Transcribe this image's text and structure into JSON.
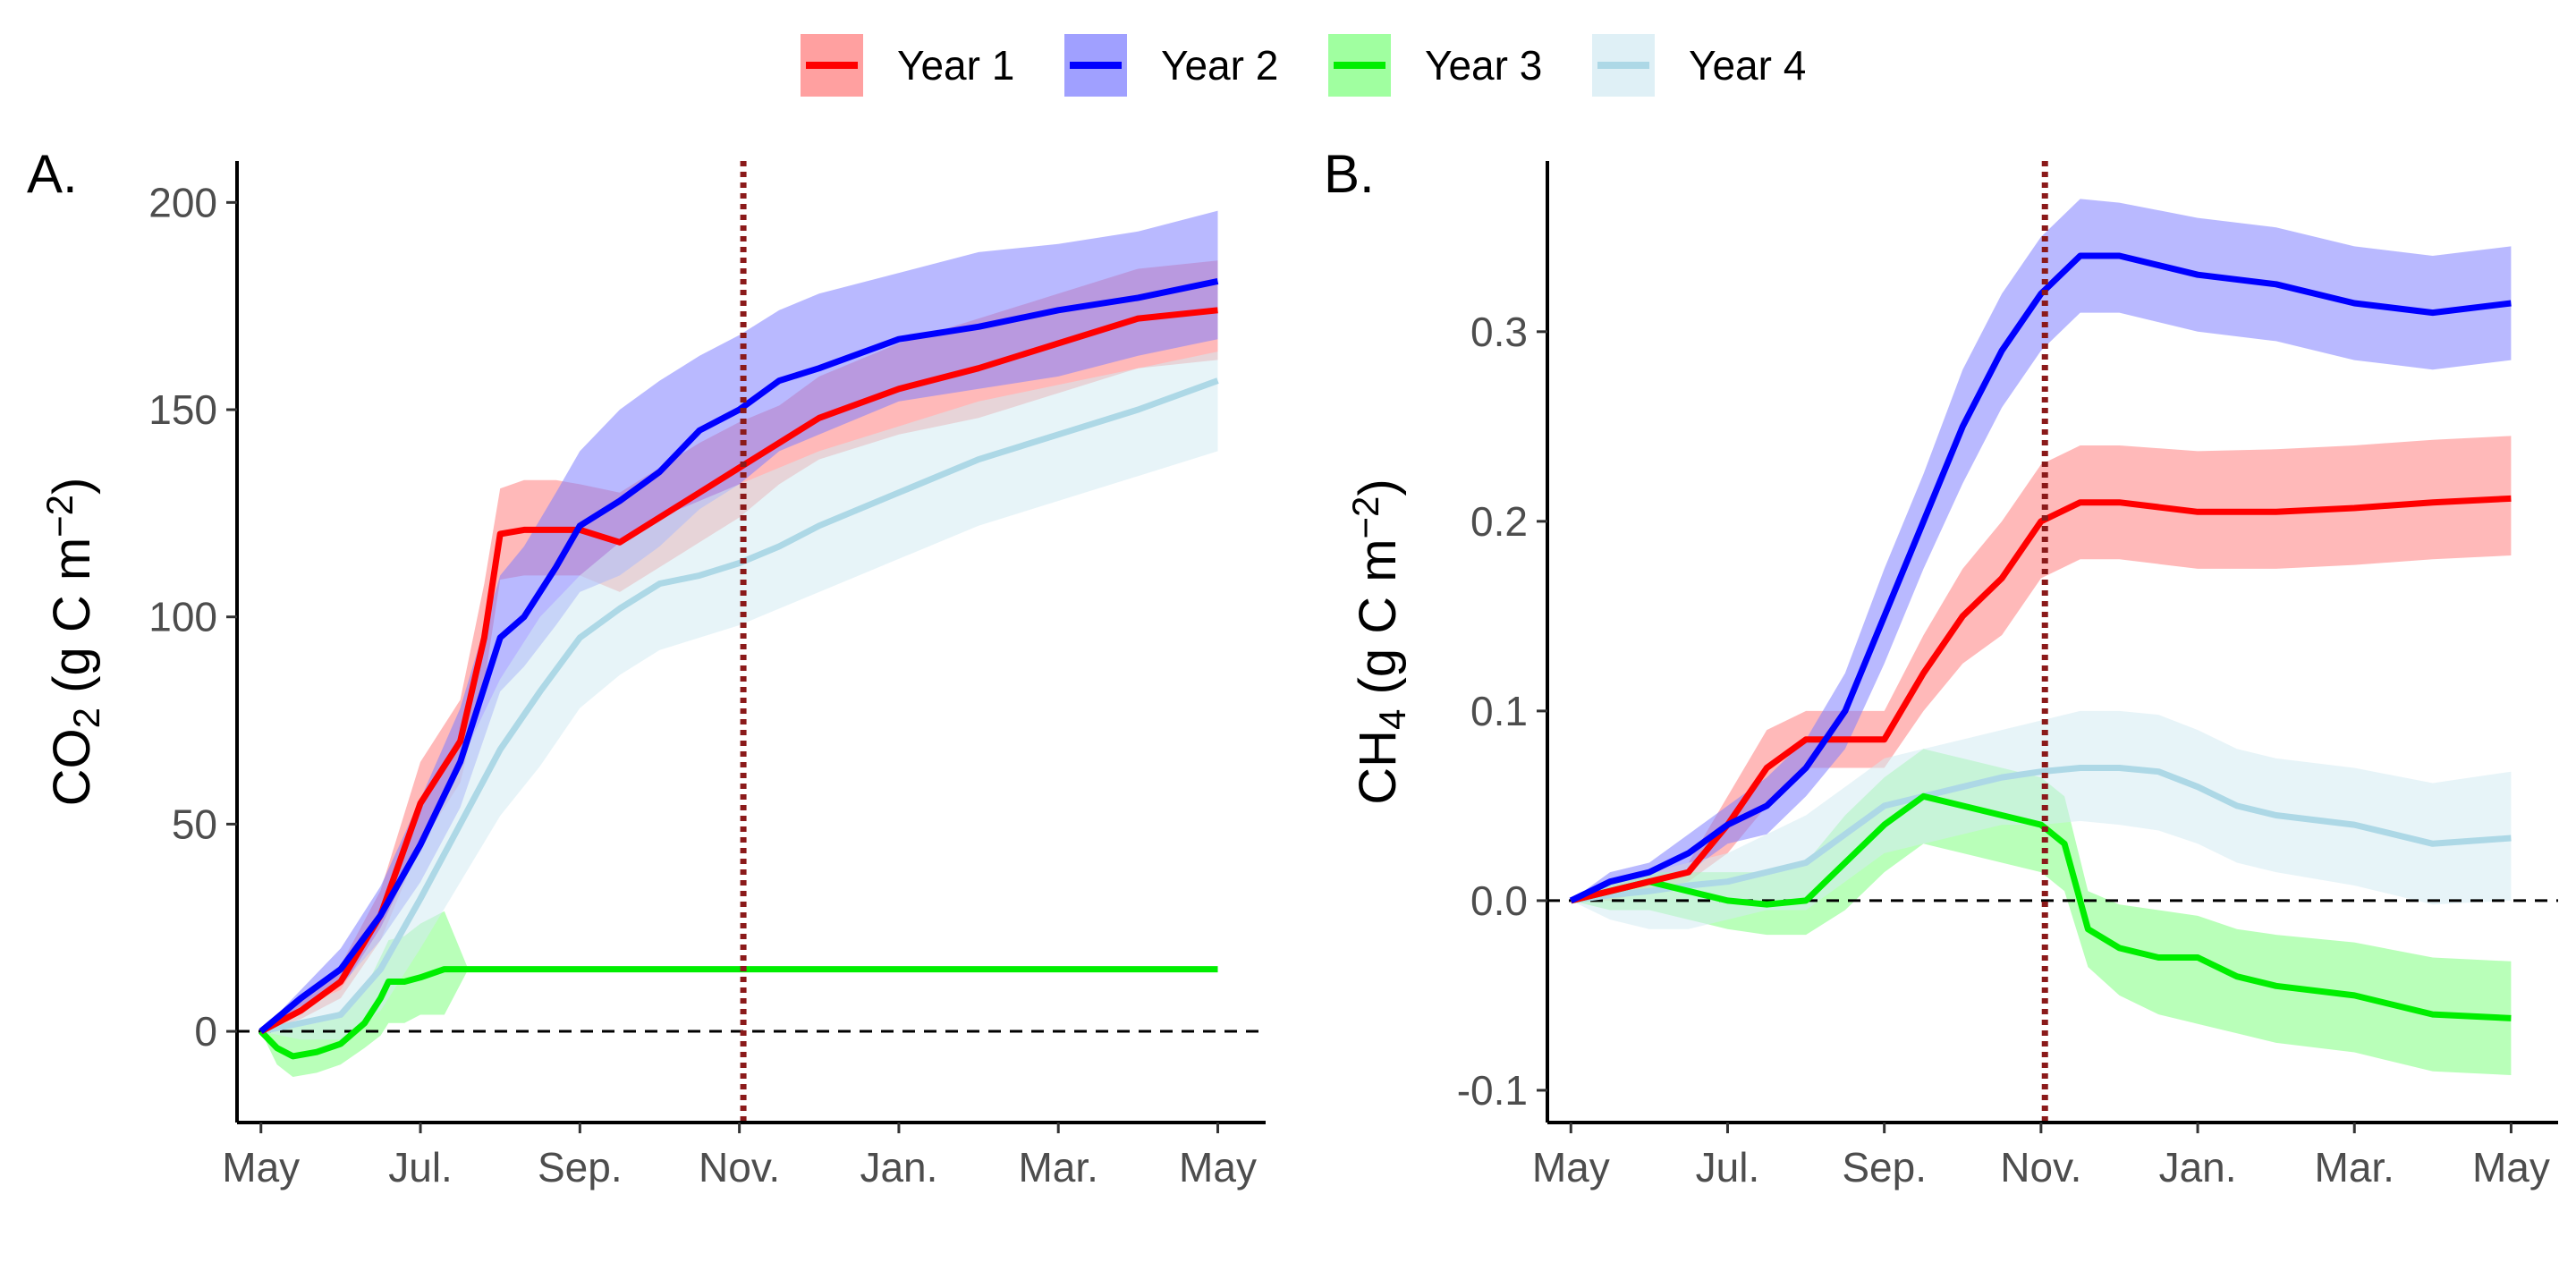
{
  "legend": {
    "entries": [
      {
        "label": "Year 1",
        "color": "#ff0000",
        "band_color": "#ff8080"
      },
      {
        "label": "Year 2",
        "color": "#0000ff",
        "band_color": "#8080ff"
      },
      {
        "label": "Year 3",
        "color": "#00ee00",
        "band_color": "#80ff80"
      },
      {
        "label": "Year 4",
        "color": "#add8e6",
        "band_color": "#d4ebf3"
      }
    ]
  },
  "reference_line_label": "",
  "chart_data": [
    {
      "type": "line",
      "panel_tag": "A.",
      "ylabel": {
        "main": "CO",
        "sub": "2",
        "unit_pre": " (g C m",
        "sup": "−2",
        "unit_post": ")"
      },
      "xlabel": "",
      "x_ticks": [
        "May",
        "Jul.",
        "Sep.",
        "Nov.",
        "Jan.",
        "Mar.",
        "May"
      ],
      "y_ticks": [
        "0",
        "50",
        "100",
        "150",
        "200"
      ],
      "y_tick_values": [
        0,
        50,
        100,
        150,
        200
      ],
      "ylim": [
        -22,
        210
      ],
      "xlim_months": [
        -0.3,
        12.6
      ],
      "zero_line": "dashed",
      "vertical_line_month": 6.05,
      "vertical_line_style": "dotted dark red",
      "grid": false,
      "series": [
        {
          "name": "Year 1",
          "x": [
            0,
            0.5,
            1,
            1.5,
            2,
            2.5,
            2.8,
            3,
            3.3,
            3.7,
            4,
            4.5,
            5,
            5.5,
            6,
            6.5,
            7,
            8,
            9,
            10,
            11,
            12
          ],
          "y": [
            0,
            5,
            12,
            28,
            55,
            70,
            95,
            120,
            121,
            121,
            121,
            118,
            124,
            130,
            136,
            142,
            148,
            155,
            160,
            166,
            172,
            174
          ],
          "upper": [
            0,
            7,
            16,
            34,
            65,
            80,
            108,
            131,
            133,
            133,
            132,
            130,
            136,
            142,
            147,
            151,
            158,
            166,
            172,
            178,
            184,
            186
          ],
          "lower": [
            0,
            3,
            8,
            22,
            45,
            60,
            84,
            109,
            110,
            110,
            110,
            106,
            112,
            118,
            124,
            132,
            138,
            144,
            148,
            154,
            160,
            162
          ]
        },
        {
          "name": "Year 2",
          "x": [
            0,
            0.5,
            1,
            1.5,
            2,
            2.5,
            3,
            3.3,
            3.7,
            4,
            4.5,
            5,
            5.5,
            6,
            6.5,
            7,
            8,
            9,
            10,
            11,
            12
          ],
          "y": [
            0,
            8,
            15,
            28,
            45,
            65,
            95,
            100,
            112,
            122,
            128,
            135,
            145,
            150,
            157,
            160,
            167,
            170,
            174,
            177,
            181
          ],
          "upper": [
            0,
            10,
            20,
            35,
            56,
            78,
            110,
            117,
            130,
            140,
            150,
            157,
            163,
            168,
            174,
            178,
            183,
            188,
            190,
            193,
            198
          ],
          "lower": [
            0,
            6,
            11,
            22,
            36,
            54,
            82,
            88,
            98,
            106,
            110,
            117,
            126,
            132,
            140,
            144,
            152,
            155,
            158,
            163,
            167
          ]
        },
        {
          "name": "Year 3",
          "x": [
            0,
            0.2,
            0.4,
            0.7,
            1,
            1.3,
            1.5,
            1.6,
            1.8,
            2,
            2.3,
            2.6,
            3,
            5,
            8,
            12
          ],
          "y": [
            0,
            -4,
            -6,
            -5,
            -3,
            2,
            8,
            12,
            12,
            13,
            15,
            15,
            15,
            15,
            15,
            15
          ],
          "upper": [
            0,
            2,
            1,
            2,
            5,
            10,
            18,
            22,
            23,
            26,
            29,
            15,
            15,
            15,
            15,
            15
          ],
          "lower": [
            0,
            -8,
            -11,
            -10,
            -8,
            -4,
            -1,
            2,
            2,
            4,
            4,
            15,
            15,
            15,
            15,
            15
          ]
        },
        {
          "name": "Year 4",
          "x": [
            0,
            0.5,
            1,
            1.5,
            2,
            2.5,
            3,
            3.5,
            4,
            4.5,
            5,
            5.5,
            6,
            6.5,
            7,
            8,
            9,
            10,
            11,
            12
          ],
          "y": [
            0,
            2,
            4,
            15,
            32,
            50,
            68,
            82,
            95,
            102,
            108,
            110,
            113,
            117,
            122,
            130,
            138,
            144,
            150,
            157
          ],
          "upper": [
            0,
            6,
            10,
            25,
            45,
            65,
            85,
            100,
            110,
            118,
            124,
            128,
            132,
            136,
            140,
            146,
            152,
            156,
            160,
            164
          ],
          "lower": [
            0,
            -2,
            -2,
            5,
            20,
            36,
            52,
            64,
            78,
            86,
            92,
            95,
            98,
            102,
            106,
            114,
            122,
            128,
            134,
            140
          ]
        }
      ]
    },
    {
      "type": "line",
      "panel_tag": "B.",
      "ylabel": {
        "main": "CH",
        "sub": "4",
        "unit_pre": " (g C m",
        "sup": "−2",
        "unit_post": ")"
      },
      "xlabel": "",
      "x_ticks": [
        "May",
        "Jul.",
        "Sep.",
        "Nov.",
        "Jan.",
        "Mar.",
        "May"
      ],
      "y_ticks": [
        "-0.1",
        "0.0",
        "0.1",
        "0.2",
        "0.3"
      ],
      "y_tick_values": [
        -0.1,
        0.0,
        0.1,
        0.2,
        0.3
      ],
      "ylim": [
        -0.117,
        0.39
      ],
      "xlim_months": [
        -0.3,
        12.6
      ],
      "zero_line": "dashed",
      "vertical_line_month": 6.05,
      "vertical_line_style": "dotted dark red",
      "grid": false,
      "series": [
        {
          "name": "Year 1",
          "x": [
            0,
            0.5,
            1,
            1.5,
            2,
            2.5,
            3,
            3.3,
            4,
            4.5,
            5,
            5.5,
            6,
            6.5,
            7,
            8,
            9,
            10,
            11,
            12
          ],
          "y": [
            0,
            0.005,
            0.01,
            0.015,
            0.04,
            0.07,
            0.085,
            0.085,
            0.085,
            0.12,
            0.15,
            0.17,
            0.2,
            0.21,
            0.21,
            0.205,
            0.205,
            0.207,
            0.21,
            0.212
          ],
          "upper": [
            0,
            0.01,
            0.015,
            0.02,
            0.055,
            0.09,
            0.1,
            0.1,
            0.1,
            0.14,
            0.175,
            0.2,
            0.23,
            0.24,
            0.24,
            0.237,
            0.238,
            0.24,
            0.243,
            0.245
          ],
          "lower": [
            0,
            0,
            0.005,
            0.01,
            0.025,
            0.05,
            0.07,
            0.07,
            0.07,
            0.1,
            0.125,
            0.14,
            0.17,
            0.18,
            0.18,
            0.175,
            0.175,
            0.177,
            0.18,
            0.182
          ]
        },
        {
          "name": "Year 2",
          "x": [
            0,
            0.5,
            1,
            1.5,
            2,
            2.5,
            3,
            3.5,
            4,
            4.5,
            5,
            5.5,
            6,
            6.5,
            7,
            8,
            9,
            10,
            11,
            12
          ],
          "y": [
            0,
            0.01,
            0.015,
            0.025,
            0.04,
            0.05,
            0.07,
            0.1,
            0.15,
            0.2,
            0.25,
            0.29,
            0.32,
            0.34,
            0.34,
            0.33,
            0.325,
            0.315,
            0.31,
            0.315
          ],
          "upper": [
            0,
            0.015,
            0.02,
            0.035,
            0.05,
            0.065,
            0.085,
            0.12,
            0.175,
            0.225,
            0.28,
            0.32,
            0.35,
            0.37,
            0.368,
            0.36,
            0.355,
            0.345,
            0.34,
            0.345
          ],
          "lower": [
            0,
            0.005,
            0.01,
            0.015,
            0.03,
            0.035,
            0.055,
            0.08,
            0.125,
            0.175,
            0.22,
            0.26,
            0.29,
            0.31,
            0.31,
            0.3,
            0.295,
            0.285,
            0.28,
            0.285
          ]
        },
        {
          "name": "Year 3",
          "x": [
            0,
            0.5,
            1,
            1.5,
            2,
            2.5,
            3,
            3.5,
            4,
            4.5,
            5,
            5.5,
            6,
            6.3,
            6.6,
            7,
            7.5,
            8,
            8.5,
            9,
            10,
            11,
            12
          ],
          "y": [
            0,
            0.005,
            0.01,
            0.005,
            0,
            -0.002,
            0,
            0.02,
            0.04,
            0.055,
            0.05,
            0.045,
            0.04,
            0.03,
            -0.015,
            -0.025,
            -0.03,
            -0.03,
            -0.04,
            -0.045,
            -0.05,
            -0.06,
            -0.062
          ],
          "upper": [
            0,
            0.01,
            0.015,
            0.015,
            0.015,
            0.015,
            0.02,
            0.045,
            0.065,
            0.08,
            0.075,
            0.07,
            0.065,
            0.055,
            0.005,
            -0.002,
            -0.005,
            -0.008,
            -0.015,
            -0.018,
            -0.022,
            -0.03,
            -0.032
          ],
          "lower": [
            0,
            -0.005,
            -0.005,
            -0.01,
            -0.015,
            -0.018,
            -0.018,
            -0.005,
            0.015,
            0.03,
            0.025,
            0.02,
            0.015,
            0.005,
            -0.035,
            -0.05,
            -0.06,
            -0.065,
            -0.07,
            -0.075,
            -0.08,
            -0.09,
            -0.092
          ]
        },
        {
          "name": "Year 4",
          "x": [
            0,
            0.5,
            1,
            1.5,
            2,
            2.5,
            3,
            3.5,
            4,
            4.5,
            5,
            5.5,
            6,
            6.5,
            7,
            7.5,
            8,
            8.5,
            9,
            10,
            11,
            12
          ],
          "y": [
            0,
            0.003,
            0.005,
            0.008,
            0.01,
            0.015,
            0.02,
            0.035,
            0.05,
            0.055,
            0.06,
            0.065,
            0.068,
            0.07,
            0.07,
            0.068,
            0.06,
            0.05,
            0.045,
            0.04,
            0.03,
            0.033
          ],
          "upper": [
            0,
            0.01,
            0.015,
            0.02,
            0.025,
            0.035,
            0.045,
            0.06,
            0.075,
            0.08,
            0.085,
            0.09,
            0.095,
            0.1,
            0.1,
            0.098,
            0.09,
            0.08,
            0.075,
            0.07,
            0.062,
            0.068
          ],
          "lower": [
            0,
            -0.01,
            -0.015,
            -0.015,
            -0.01,
            -0.005,
            -0.005,
            0.01,
            0.025,
            0.03,
            0.035,
            0.04,
            0.04,
            0.042,
            0.04,
            0.037,
            0.03,
            0.02,
            0.015,
            0.008,
            -0.002,
            0
          ]
        }
      ]
    }
  ]
}
